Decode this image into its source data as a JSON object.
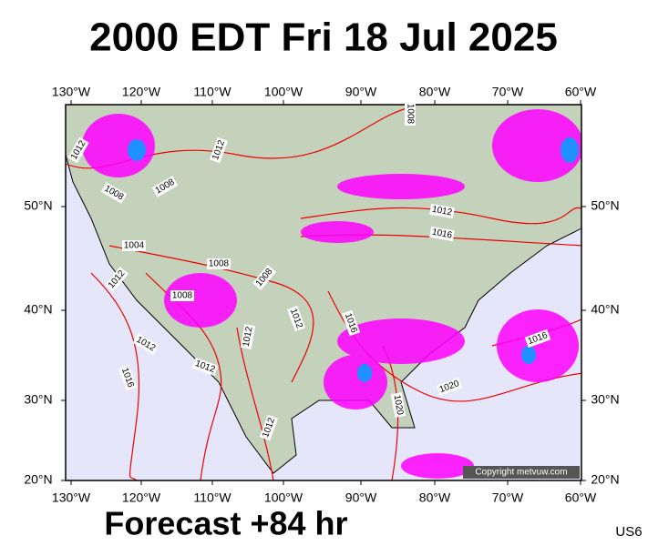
{
  "header": {
    "title": "2000 EDT Fri 18 Jul 2025"
  },
  "map": {
    "lon_labels": [
      "130°W",
      "120°W",
      "110°W",
      "100°W",
      "90°W",
      "80°W",
      "70°W",
      "60°W"
    ],
    "lat_labels": [
      "50°N",
      "40°N",
      "30°N",
      "20°N"
    ],
    "isobar_labels": [
      "1012",
      "1008",
      "1008",
      "1004",
      "1008",
      "1008",
      "1012",
      "1012",
      "1012",
      "1016",
      "1008",
      "1012",
      "1016",
      "1012",
      "1012",
      "1016",
      "1016",
      "1020",
      "1020",
      "1012",
      "1012",
      "1008"
    ],
    "copyright": "Copyright metvuw.com"
  },
  "footer": {
    "forecast": "Forecast +84 hr",
    "code": "US6"
  }
}
